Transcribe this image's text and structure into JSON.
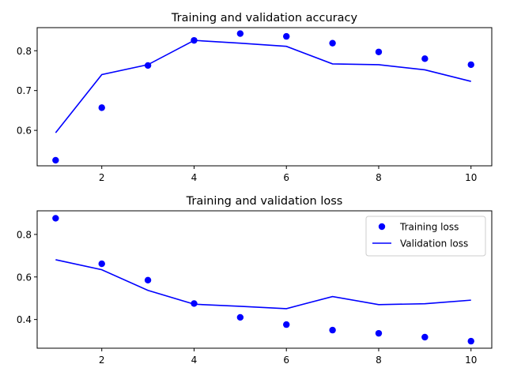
{
  "colors": {
    "series": "#0000ff",
    "axes": "#000000"
  },
  "chart_data": [
    {
      "type": "line",
      "title": "Training and validation accuracy",
      "x": [
        1,
        2,
        3,
        4,
        5,
        6,
        7,
        8,
        9,
        10
      ],
      "xticks": [
        "2",
        "4",
        "6",
        "8",
        "10"
      ],
      "yticks": [
        "0.6",
        "0.7",
        "0.8"
      ],
      "xlim": [
        0.6,
        10.45
      ],
      "ylim": [
        0.511,
        0.858
      ],
      "grid": false,
      "legend": null,
      "series": [
        {
          "style": "points",
          "values": [
            0.525,
            0.657,
            0.763,
            0.826,
            0.843,
            0.836,
            0.819,
            0.797,
            0.78,
            0.765
          ]
        },
        {
          "style": "line",
          "values": [
            0.594,
            0.74,
            0.765,
            0.826,
            0.819,
            0.811,
            0.767,
            0.765,
            0.752,
            0.723
          ]
        }
      ]
    },
    {
      "type": "line",
      "title": "Training and validation loss",
      "x": [
        1,
        2,
        3,
        4,
        5,
        6,
        7,
        8,
        9,
        10
      ],
      "xticks": [
        "2",
        "4",
        "6",
        "8",
        "10"
      ],
      "yticks": [
        "0.4",
        "0.6",
        "0.8"
      ],
      "xlim": [
        0.6,
        10.45
      ],
      "ylim": [
        0.265,
        0.911
      ],
      "grid": false,
      "legend": "top-right",
      "series": [
        {
          "name": "Training loss",
          "style": "points",
          "values": [
            0.876,
            0.662,
            0.585,
            0.475,
            0.41,
            0.376,
            0.35,
            0.335,
            0.317,
            0.298
          ]
        },
        {
          "name": "Validation loss",
          "style": "line",
          "values": [
            0.681,
            0.634,
            0.537,
            0.472,
            0.462,
            0.451,
            0.508,
            0.47,
            0.474,
            0.491
          ]
        }
      ]
    }
  ]
}
